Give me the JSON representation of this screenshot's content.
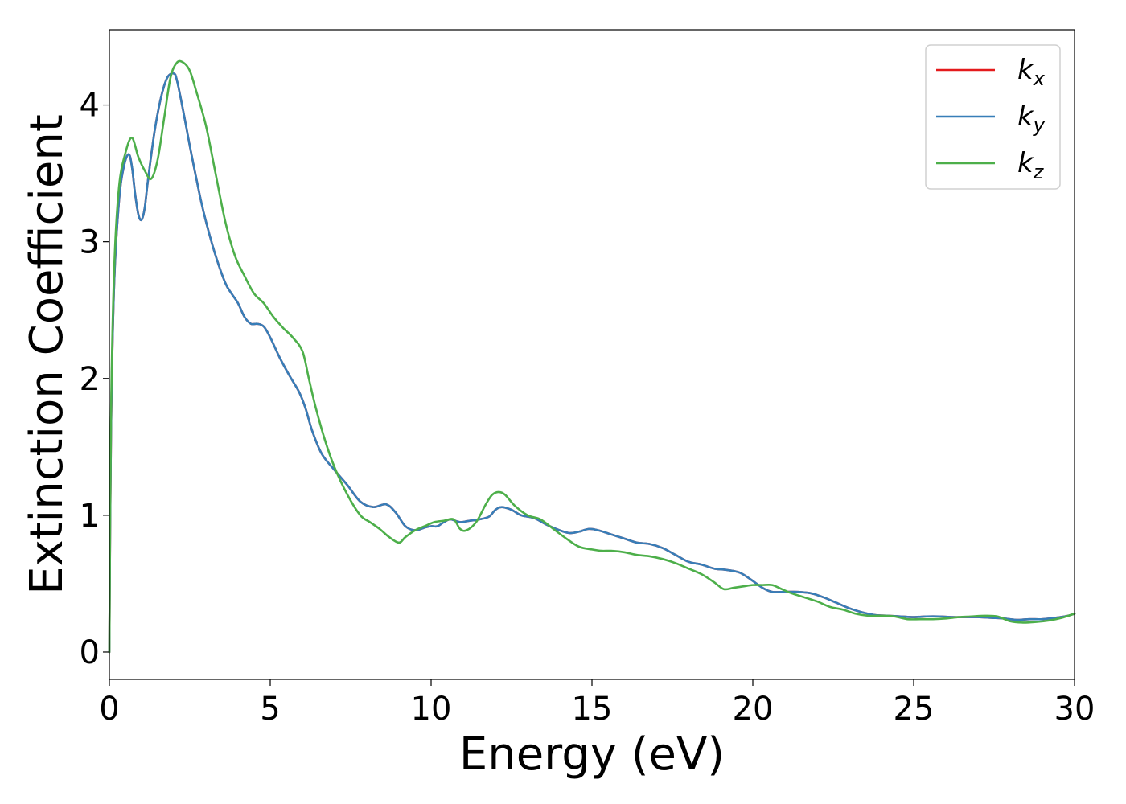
{
  "chart_data": {
    "type": "line",
    "title": "",
    "xlabel": "Energy (eV)",
    "ylabel": "Extinction Coefficient",
    "xlim": [
      0,
      30
    ],
    "ylim": [
      -0.2,
      4.55
    ],
    "xticks": [
      0,
      5,
      10,
      15,
      20,
      25,
      30
    ],
    "yticks": [
      0,
      1,
      2,
      3,
      4
    ],
    "grid": false,
    "legend_position": "top-right",
    "series": [
      {
        "name": "k_x",
        "legend_base": "k",
        "legend_sub": "x",
        "color": "#e41a1c",
        "x": [
          0,
          0.05,
          0.15,
          0.3,
          0.45,
          0.6,
          0.7,
          0.8,
          0.9,
          1.0,
          1.1,
          1.2,
          1.4,
          1.6,
          1.8,
          2.0,
          2.1,
          2.3,
          2.5,
          2.8,
          3.0,
          3.3,
          3.6,
          3.8,
          4.0,
          4.2,
          4.4,
          4.6,
          4.8,
          5.0,
          5.3,
          5.6,
          5.9,
          6.1,
          6.3,
          6.6,
          7.0,
          7.4,
          7.8,
          8.2,
          8.6,
          8.9,
          9.2,
          9.5,
          9.8,
          10.0,
          10.2,
          10.4,
          10.6,
          10.9,
          11.2,
          11.5,
          11.8,
          12.0,
          12.2,
          12.5,
          12.8,
          13.2,
          13.6,
          14.0,
          14.3,
          14.6,
          14.9,
          15.2,
          15.6,
          16.0,
          16.4,
          16.8,
          17.2,
          17.6,
          18.0,
          18.4,
          18.8,
          19.2,
          19.6,
          20.0,
          20.3,
          20.6,
          21.0,
          21.4,
          21.8,
          22.2,
          22.6,
          23.0,
          23.4,
          23.8,
          24.2,
          24.6,
          25.0,
          25.4,
          25.8,
          26.2,
          26.6,
          27.0,
          27.4,
          27.8,
          28.2,
          28.6,
          29.0,
          29.4,
          29.8,
          30.0
        ],
        "y": [
          0.0,
          1.6,
          2.7,
          3.3,
          3.55,
          3.64,
          3.55,
          3.35,
          3.2,
          3.16,
          3.25,
          3.45,
          3.8,
          4.05,
          4.2,
          4.23,
          4.18,
          3.95,
          3.7,
          3.35,
          3.15,
          2.9,
          2.7,
          2.62,
          2.55,
          2.45,
          2.4,
          2.4,
          2.38,
          2.3,
          2.15,
          2.02,
          1.9,
          1.78,
          1.62,
          1.45,
          1.33,
          1.22,
          1.1,
          1.06,
          1.08,
          1.02,
          0.92,
          0.89,
          0.91,
          0.92,
          0.92,
          0.95,
          0.97,
          0.95,
          0.96,
          0.97,
          0.99,
          1.04,
          1.06,
          1.04,
          1.0,
          0.98,
          0.93,
          0.89,
          0.87,
          0.88,
          0.9,
          0.89,
          0.86,
          0.83,
          0.8,
          0.79,
          0.76,
          0.71,
          0.66,
          0.64,
          0.61,
          0.6,
          0.58,
          0.52,
          0.47,
          0.44,
          0.44,
          0.44,
          0.43,
          0.4,
          0.36,
          0.32,
          0.29,
          0.27,
          0.265,
          0.26,
          0.255,
          0.26,
          0.26,
          0.255,
          0.255,
          0.255,
          0.25,
          0.245,
          0.235,
          0.24,
          0.24,
          0.25,
          0.265,
          0.28
        ]
      },
      {
        "name": "k_y",
        "legend_base": "k",
        "legend_sub": "y",
        "color": "#377eb8",
        "x": [
          0,
          0.05,
          0.15,
          0.3,
          0.45,
          0.6,
          0.7,
          0.8,
          0.9,
          1.0,
          1.1,
          1.2,
          1.4,
          1.6,
          1.8,
          2.0,
          2.1,
          2.3,
          2.5,
          2.8,
          3.0,
          3.3,
          3.6,
          3.8,
          4.0,
          4.2,
          4.4,
          4.6,
          4.8,
          5.0,
          5.3,
          5.6,
          5.9,
          6.1,
          6.3,
          6.6,
          7.0,
          7.4,
          7.8,
          8.2,
          8.6,
          8.9,
          9.2,
          9.5,
          9.8,
          10.0,
          10.2,
          10.4,
          10.6,
          10.9,
          11.2,
          11.5,
          11.8,
          12.0,
          12.2,
          12.5,
          12.8,
          13.2,
          13.6,
          14.0,
          14.3,
          14.6,
          14.9,
          15.2,
          15.6,
          16.0,
          16.4,
          16.8,
          17.2,
          17.6,
          18.0,
          18.4,
          18.8,
          19.2,
          19.6,
          20.0,
          20.3,
          20.6,
          21.0,
          21.4,
          21.8,
          22.2,
          22.6,
          23.0,
          23.4,
          23.8,
          24.2,
          24.6,
          25.0,
          25.4,
          25.8,
          26.2,
          26.6,
          27.0,
          27.4,
          27.8,
          28.2,
          28.6,
          29.0,
          29.4,
          29.8,
          30.0
        ],
        "y": [
          0.0,
          1.6,
          2.7,
          3.3,
          3.55,
          3.64,
          3.55,
          3.35,
          3.2,
          3.16,
          3.25,
          3.45,
          3.8,
          4.05,
          4.2,
          4.23,
          4.18,
          3.95,
          3.7,
          3.35,
          3.15,
          2.9,
          2.7,
          2.62,
          2.55,
          2.45,
          2.4,
          2.4,
          2.38,
          2.3,
          2.15,
          2.02,
          1.9,
          1.78,
          1.62,
          1.45,
          1.33,
          1.22,
          1.1,
          1.06,
          1.08,
          1.02,
          0.92,
          0.89,
          0.91,
          0.92,
          0.92,
          0.95,
          0.97,
          0.95,
          0.96,
          0.97,
          0.99,
          1.04,
          1.06,
          1.04,
          1.0,
          0.98,
          0.93,
          0.89,
          0.87,
          0.88,
          0.9,
          0.89,
          0.86,
          0.83,
          0.8,
          0.79,
          0.76,
          0.71,
          0.66,
          0.64,
          0.61,
          0.6,
          0.58,
          0.52,
          0.47,
          0.44,
          0.44,
          0.44,
          0.43,
          0.4,
          0.36,
          0.32,
          0.29,
          0.27,
          0.265,
          0.26,
          0.255,
          0.26,
          0.26,
          0.255,
          0.255,
          0.255,
          0.25,
          0.245,
          0.235,
          0.24,
          0.24,
          0.25,
          0.265,
          0.28
        ]
      },
      {
        "name": "k_z",
        "legend_base": "k",
        "legend_sub": "z",
        "color": "#4daf4a",
        "x": [
          0,
          0.05,
          0.15,
          0.3,
          0.5,
          0.7,
          0.9,
          1.1,
          1.3,
          1.5,
          1.7,
          1.9,
          2.1,
          2.3,
          2.5,
          2.7,
          3.0,
          3.3,
          3.6,
          3.9,
          4.2,
          4.5,
          4.8,
          5.1,
          5.4,
          5.7,
          6.0,
          6.2,
          6.4,
          6.7,
          7.0,
          7.4,
          7.8,
          8.1,
          8.4,
          8.7,
          9.0,
          9.2,
          9.5,
          9.8,
          10.1,
          10.4,
          10.7,
          10.9,
          11.1,
          11.4,
          11.7,
          11.9,
          12.1,
          12.3,
          12.6,
          13.0,
          13.4,
          13.8,
          14.2,
          14.6,
          15.0,
          15.3,
          15.6,
          16.0,
          16.4,
          16.8,
          17.2,
          17.6,
          18.0,
          18.4,
          18.8,
          19.1,
          19.4,
          19.7,
          20.0,
          20.3,
          20.6,
          20.9,
          21.2,
          21.6,
          22.0,
          22.4,
          22.8,
          23.2,
          23.6,
          24.0,
          24.4,
          24.8,
          25.2,
          25.6,
          26.0,
          26.4,
          26.8,
          27.2,
          27.6,
          28.0,
          28.4,
          28.8,
          29.2,
          29.6,
          30.0
        ],
        "y": [
          0.0,
          1.7,
          2.8,
          3.4,
          3.65,
          3.76,
          3.62,
          3.52,
          3.46,
          3.6,
          3.9,
          4.2,
          4.31,
          4.31,
          4.25,
          4.1,
          3.85,
          3.5,
          3.15,
          2.9,
          2.75,
          2.62,
          2.55,
          2.45,
          2.37,
          2.3,
          2.2,
          2.0,
          1.8,
          1.55,
          1.35,
          1.15,
          1.0,
          0.95,
          0.9,
          0.84,
          0.8,
          0.84,
          0.89,
          0.92,
          0.95,
          0.96,
          0.97,
          0.9,
          0.89,
          0.95,
          1.08,
          1.15,
          1.17,
          1.15,
          1.07,
          1.0,
          0.97,
          0.9,
          0.83,
          0.77,
          0.75,
          0.74,
          0.74,
          0.73,
          0.71,
          0.7,
          0.68,
          0.65,
          0.61,
          0.57,
          0.51,
          0.46,
          0.47,
          0.48,
          0.49,
          0.49,
          0.49,
          0.46,
          0.43,
          0.4,
          0.37,
          0.33,
          0.31,
          0.28,
          0.265,
          0.265,
          0.26,
          0.24,
          0.24,
          0.24,
          0.245,
          0.255,
          0.26,
          0.265,
          0.26,
          0.225,
          0.215,
          0.22,
          0.23,
          0.25,
          0.28
        ]
      }
    ]
  }
}
